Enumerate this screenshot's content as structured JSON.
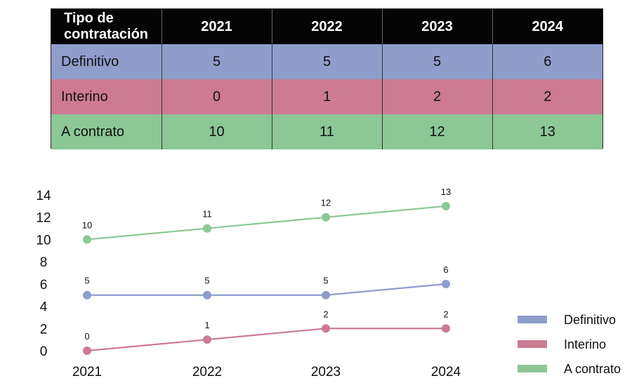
{
  "table": {
    "header_label": "Tipo de contratación",
    "years": [
      "2021",
      "2022",
      "2023",
      "2024"
    ],
    "rows": [
      {
        "label": "Definitivo",
        "values": [
          "5",
          "5",
          "5",
          "6"
        ]
      },
      {
        "label": "Interino",
        "values": [
          "0",
          "1",
          "2",
          "2"
        ]
      },
      {
        "label": "A contrato",
        "values": [
          "10",
          "11",
          "12",
          "13"
        ]
      }
    ]
  },
  "chart_data": {
    "type": "line",
    "title": "",
    "xlabel": "",
    "ylabel": "",
    "categories": [
      "2021",
      "2022",
      "2023",
      "2024"
    ],
    "ylim": [
      0,
      14
    ],
    "yticks": [
      0,
      2,
      4,
      6,
      8,
      10,
      12,
      14
    ],
    "grid": false,
    "legend_position": "bottom-right",
    "series": [
      {
        "name": "Definitivo",
        "values": [
          5,
          5,
          5,
          6
        ],
        "color": "#8f9dcb"
      },
      {
        "name": "Interino",
        "values": [
          0,
          1,
          2,
          2
        ],
        "color": "#cc7b92"
      },
      {
        "name": "A contrato",
        "values": [
          10,
          11,
          12,
          13
        ],
        "color": "#8cc796"
      }
    ]
  }
}
